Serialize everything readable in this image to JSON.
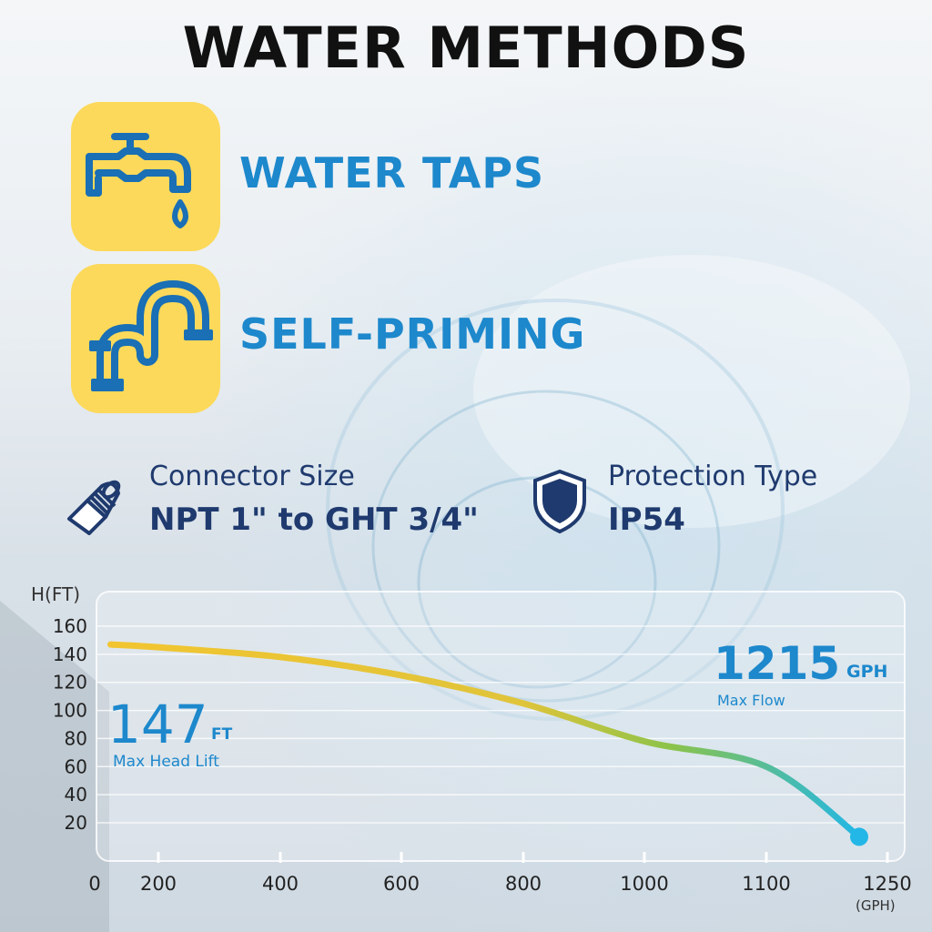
{
  "title": "WATER METHODS",
  "methods": [
    {
      "label": "WATER TAPS",
      "icon": "water-tap-icon"
    },
    {
      "label": "SELF-PRIMING",
      "icon": "self-priming-pipe-icon"
    }
  ],
  "specs": [
    {
      "label": "Connector Size",
      "value": "NPT 1\" to GHT 3/4\"",
      "icon": "connector-icon"
    },
    {
      "label": "Protection Type",
      "value": "IP54",
      "icon": "shield-icon"
    }
  ],
  "colors": {
    "accent_blue": "#1d88cc",
    "navy": "#1f3a6e",
    "icon_bg_yellow": "#fcd95a",
    "curve_start": "#f2c530",
    "curve_mid": "#8bc34a",
    "curve_end": "#22b7e6"
  },
  "chart_data": {
    "type": "line",
    "ylabel": "H(FT)",
    "xlabel": "(GPH)",
    "y_ticks": [
      20,
      40,
      60,
      80,
      100,
      120,
      140,
      160
    ],
    "x_ticks": [
      "0",
      "200",
      "400",
      "600",
      "800",
      "1000",
      "1100",
      "1250"
    ],
    "grid": true,
    "series": [
      {
        "x": [
          50,
          200,
          400,
          600,
          800,
          1000,
          1100,
          1215
        ],
        "y": [
          147,
          145,
          138,
          125,
          105,
          78,
          60,
          10
        ]
      }
    ],
    "annotations": {
      "head": {
        "value": "147",
        "unit": "FT",
        "caption": "Max Head Lift"
      },
      "flow": {
        "value": "1215",
        "unit": "GPH",
        "caption": "Max Flow"
      }
    }
  }
}
